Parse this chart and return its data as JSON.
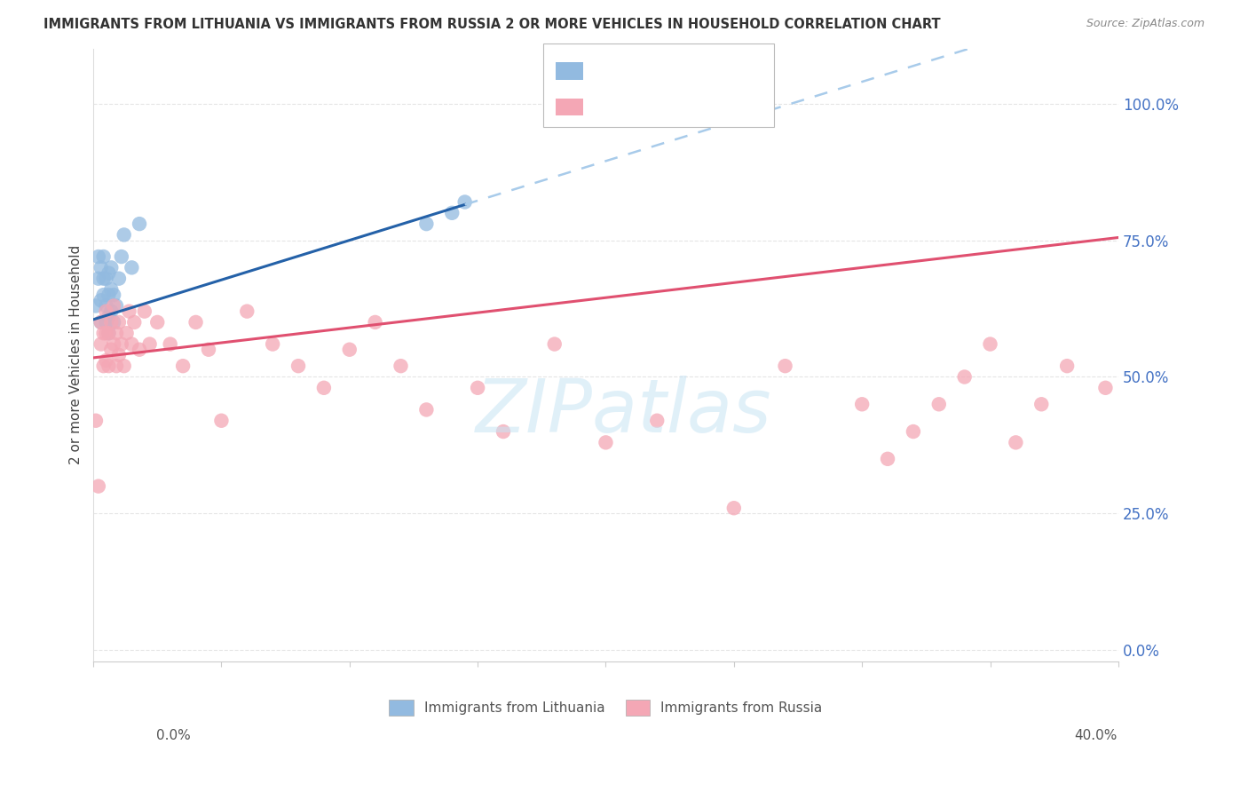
{
  "title": "IMMIGRANTS FROM LITHUANIA VS IMMIGRANTS FROM RUSSIA 2 OR MORE VEHICLES IN HOUSEHOLD CORRELATION CHART",
  "source": "Source: ZipAtlas.com",
  "ylabel": "2 or more Vehicles in Household",
  "ytick_labels": [
    "0.0%",
    "25.0%",
    "50.0%",
    "75.0%",
    "100.0%"
  ],
  "ytick_values": [
    0.0,
    0.25,
    0.5,
    0.75,
    1.0
  ],
  "xmin": 0.0,
  "xmax": 0.4,
  "ymin": -0.02,
  "ymax": 1.1,
  "legend_blue_label": "Immigrants from Lithuania",
  "legend_pink_label": "Immigrants from Russia",
  "blue_color": "#92BAE0",
  "blue_line_color": "#2461A8",
  "blue_dashed_color": "#A8CBEA",
  "pink_color": "#F4A7B5",
  "pink_line_color": "#E05070",
  "n_color": "#2CA02C",
  "r_color": "#4472C4",
  "ytick_color": "#4472C4",
  "blue_scatter_x": [
    0.001,
    0.002,
    0.002,
    0.003,
    0.003,
    0.003,
    0.004,
    0.004,
    0.004,
    0.005,
    0.005,
    0.005,
    0.006,
    0.006,
    0.006,
    0.006,
    0.007,
    0.007,
    0.007,
    0.008,
    0.008,
    0.009,
    0.01,
    0.011,
    0.012,
    0.015,
    0.018,
    0.13,
    0.14,
    0.145
  ],
  "blue_scatter_y": [
    0.63,
    0.68,
    0.72,
    0.6,
    0.64,
    0.7,
    0.65,
    0.68,
    0.72,
    0.6,
    0.63,
    0.68,
    0.58,
    0.61,
    0.65,
    0.69,
    0.62,
    0.66,
    0.7,
    0.6,
    0.65,
    0.63,
    0.68,
    0.72,
    0.76,
    0.7,
    0.78,
    0.78,
    0.8,
    0.82
  ],
  "pink_scatter_x": [
    0.001,
    0.002,
    0.003,
    0.003,
    0.004,
    0.004,
    0.005,
    0.005,
    0.005,
    0.006,
    0.006,
    0.007,
    0.007,
    0.008,
    0.008,
    0.009,
    0.009,
    0.01,
    0.01,
    0.011,
    0.012,
    0.013,
    0.014,
    0.015,
    0.016,
    0.018,
    0.02,
    0.022,
    0.025,
    0.03,
    0.035,
    0.04,
    0.045,
    0.05,
    0.06,
    0.07,
    0.08,
    0.09,
    0.1,
    0.11,
    0.12,
    0.13,
    0.15,
    0.16,
    0.18,
    0.2,
    0.22,
    0.25,
    0.27,
    0.3,
    0.31,
    0.32,
    0.33,
    0.34,
    0.35,
    0.36,
    0.37,
    0.38,
    0.395
  ],
  "pink_scatter_y": [
    0.42,
    0.3,
    0.56,
    0.6,
    0.52,
    0.58,
    0.53,
    0.58,
    0.62,
    0.52,
    0.58,
    0.55,
    0.6,
    0.56,
    0.63,
    0.52,
    0.58,
    0.54,
    0.6,
    0.56,
    0.52,
    0.58,
    0.62,
    0.56,
    0.6,
    0.55,
    0.62,
    0.56,
    0.6,
    0.56,
    0.52,
    0.6,
    0.55,
    0.42,
    0.62,
    0.56,
    0.52,
    0.48,
    0.55,
    0.6,
    0.52,
    0.44,
    0.48,
    0.4,
    0.56,
    0.38,
    0.42,
    0.26,
    0.52,
    0.45,
    0.35,
    0.4,
    0.45,
    0.5,
    0.56,
    0.38,
    0.45,
    0.52,
    0.48
  ],
  "blue_line_x0": 0.0,
  "blue_line_x_solid_end": 0.145,
  "blue_line_x1": 0.4,
  "blue_line_y0": 0.605,
  "blue_line_slope": 1.45,
  "pink_line_x0": 0.0,
  "pink_line_x1": 0.4,
  "pink_line_y0": 0.535,
  "pink_line_slope": 0.55
}
